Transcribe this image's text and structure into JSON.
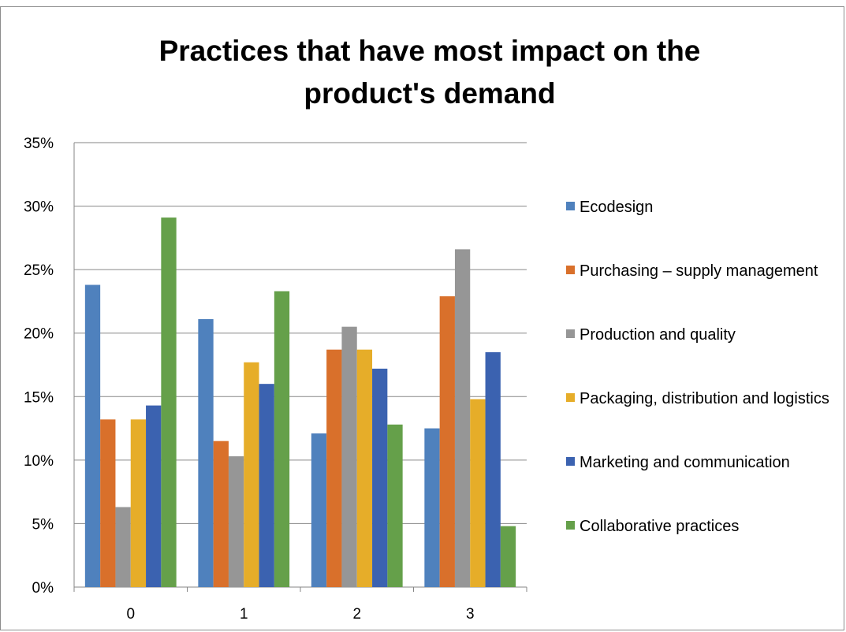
{
  "chart_data": {
    "type": "bar",
    "title": "Practices that have most impact on the\nproduct's demand",
    "xlabel": "",
    "ylabel": "",
    "categories": [
      "0",
      "1",
      "2",
      "3"
    ],
    "ylim": [
      0,
      0.35
    ],
    "yticks": [
      "0%",
      "5%",
      "10%",
      "15%",
      "20%",
      "25%",
      "30%",
      "35%"
    ],
    "grid": true,
    "legend_position": "right",
    "series": [
      {
        "name": "Ecodesign",
        "color": "#4f81bd",
        "values": [
          0.238,
          0.211,
          0.121,
          0.125
        ]
      },
      {
        "name": "Purchasing – supply management",
        "color": "#d9702b",
        "values": [
          0.132,
          0.115,
          0.187,
          0.229
        ]
      },
      {
        "name": "Production and quality",
        "color": "#969696",
        "values": [
          0.063,
          0.103,
          0.205,
          0.266
        ]
      },
      {
        "name": "Packaging, distribution and logistics",
        "color": "#e6ad29",
        "values": [
          0.132,
          0.177,
          0.187,
          0.148
        ]
      },
      {
        "name": "Marketing and communication",
        "color": "#3b62b0",
        "values": [
          0.143,
          0.16,
          0.172,
          0.185
        ]
      },
      {
        "name": "Collaborative practices",
        "color": "#65a04a",
        "values": [
          0.291,
          0.233,
          0.128,
          0.048
        ]
      }
    ]
  }
}
